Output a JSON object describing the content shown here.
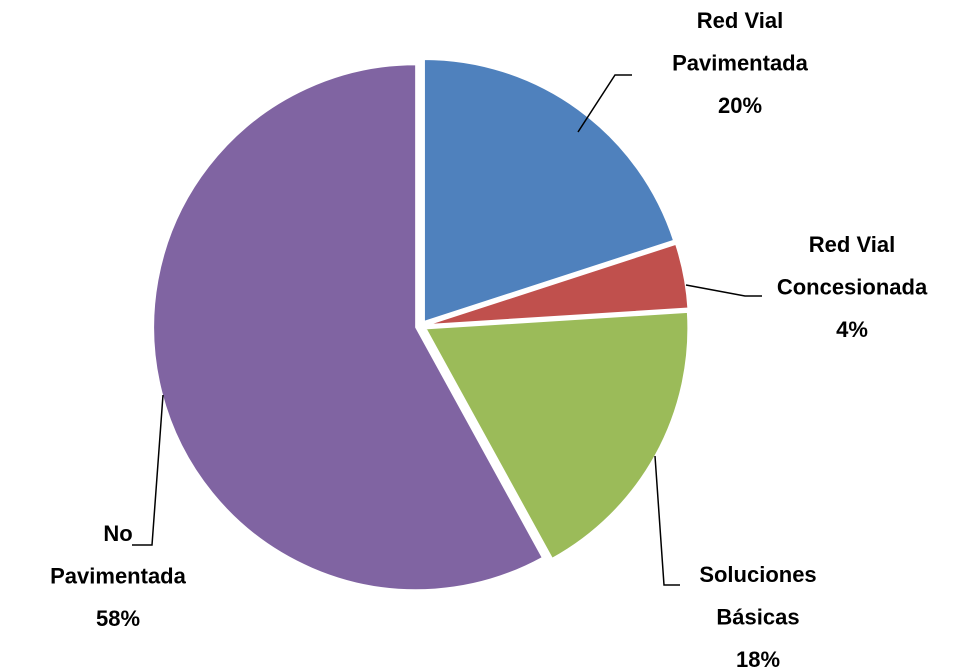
{
  "chart_data": {
    "type": "pie",
    "categories": [
      [
        "Red Vial",
        "Pavimentada"
      ],
      [
        "Red Vial",
        "Concesionada"
      ],
      [
        "Soluciones",
        "Básicas"
      ],
      [
        "No",
        "Pavimentada"
      ]
    ],
    "values": [
      20,
      4,
      18,
      58
    ],
    "value_labels": [
      "20%",
      "4%",
      "18%",
      "58%"
    ],
    "colors": [
      "#4f81bd",
      "#c0504d",
      "#9bbb59",
      "#8064a2"
    ]
  }
}
